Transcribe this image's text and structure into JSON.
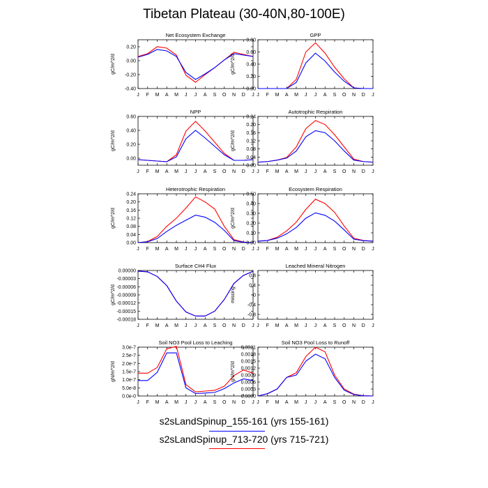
{
  "title": "Tibetan Plateau (30-40N,80-100E)",
  "months": [
    "J",
    "F",
    "M",
    "A",
    "M",
    "J",
    "J",
    "A",
    "S",
    "O",
    "N",
    "D",
    "J"
  ],
  "legend": [
    {
      "label": "s2sLandSpinup_155-161 (yrs 155-161)",
      "color": "#0000ff"
    },
    {
      "label": "s2sLandSpinup_713-720 (yrs 715-721)",
      "color": "#ff0000"
    }
  ],
  "chart_data": [
    {
      "type": "line",
      "title": "Net Ecosystem Exchange",
      "ylabel": "gC/m^2/d",
      "ylim": [
        -0.4,
        0.3
      ],
      "yticks": [
        "0.20",
        "0.00",
        "-0.20",
        "-0.40"
      ],
      "ytick_values": [
        0.2,
        0.0,
        -0.2,
        -0.4
      ],
      "series": [
        {
          "color": "#ff0000",
          "values": [
            0.06,
            0.1,
            0.2,
            0.18,
            0.08,
            -0.21,
            -0.31,
            -0.2,
            -0.1,
            0.01,
            0.12,
            0.09,
            0.06
          ]
        },
        {
          "color": "#0000ff",
          "values": [
            0.05,
            0.09,
            0.16,
            0.14,
            0.06,
            -0.17,
            -0.27,
            -0.19,
            -0.1,
            0.01,
            0.1,
            0.08,
            0.06
          ]
        }
      ]
    },
    {
      "type": "line",
      "title": "GPP",
      "ylabel": "gC/m^2/d",
      "ylim": [
        0,
        0.8
      ],
      "yticks": [
        "0.80",
        "0.60",
        "0.40",
        "0.20",
        "0.00"
      ],
      "ytick_values": [
        0.8,
        0.6,
        0.4,
        0.2,
        0.0
      ],
      "series": [
        {
          "color": "#ff0000",
          "values": [
            0.0,
            0.0,
            0.0,
            0.0,
            0.15,
            0.6,
            0.75,
            0.58,
            0.35,
            0.16,
            0.01,
            0.0,
            0.0
          ]
        },
        {
          "color": "#0000ff",
          "values": [
            0.0,
            0.0,
            0.0,
            0.0,
            0.1,
            0.42,
            0.58,
            0.45,
            0.27,
            0.12,
            0.01,
            0.0,
            0.0
          ]
        }
      ]
    },
    {
      "type": "line",
      "title": "NPP",
      "ylabel": "gC/m^2/d",
      "ylim": [
        -0.1,
        0.6
      ],
      "yticks": [
        "0.60",
        "0.40",
        "0.20",
        "0.00"
      ],
      "ytick_values": [
        0.6,
        0.4,
        0.2,
        0.0
      ],
      "series": [
        {
          "color": "#ff0000",
          "values": [
            -0.02,
            -0.03,
            -0.04,
            -0.05,
            0.05,
            0.39,
            0.53,
            0.39,
            0.23,
            0.07,
            -0.03,
            -0.03,
            -0.02
          ]
        },
        {
          "color": "#0000ff",
          "values": [
            -0.02,
            -0.03,
            -0.04,
            -0.05,
            0.02,
            0.28,
            0.4,
            0.29,
            0.17,
            0.05,
            -0.03,
            -0.03,
            -0.02
          ]
        }
      ]
    },
    {
      "type": "line",
      "title": "Autotrophic Respiration",
      "ylabel": "gC/m^2/d",
      "ylim": [
        0,
        0.24
      ],
      "yticks": [
        "0.24",
        "0.20",
        "0.16",
        "0.12",
        "0.08",
        "0.04",
        "0.00"
      ],
      "ytick_values": [
        0.24,
        0.2,
        0.16,
        0.12,
        0.08,
        0.04,
        0.0
      ],
      "series": [
        {
          "color": "#ff0000",
          "values": [
            0.015,
            0.018,
            0.025,
            0.038,
            0.09,
            0.18,
            0.22,
            0.2,
            0.15,
            0.09,
            0.03,
            0.018,
            0.015
          ]
        },
        {
          "color": "#0000ff",
          "values": [
            0.015,
            0.018,
            0.025,
            0.035,
            0.07,
            0.14,
            0.17,
            0.16,
            0.12,
            0.07,
            0.025,
            0.018,
            0.015
          ]
        }
      ]
    },
    {
      "type": "line",
      "title": "Heterotrophic Respiration",
      "ylabel": "gC/m^2/d",
      "ylim": [
        0,
        0.24
      ],
      "yticks": [
        "0.24",
        "0.20",
        "0.16",
        "0.12",
        "0.08",
        "0.04",
        "0.00"
      ],
      "ytick_values": [
        0.24,
        0.2,
        0.16,
        0.12,
        0.08,
        0.04,
        0.0
      ],
      "series": [
        {
          "color": "#ff0000",
          "values": [
            0.0,
            0.005,
            0.03,
            0.08,
            0.12,
            0.17,
            0.225,
            0.2,
            0.165,
            0.08,
            0.015,
            0.003,
            0.0
          ]
        },
        {
          "color": "#0000ff",
          "values": [
            0.0,
            0.004,
            0.02,
            0.055,
            0.085,
            0.11,
            0.135,
            0.125,
            0.1,
            0.06,
            0.01,
            0.002,
            0.0
          ]
        }
      ]
    },
    {
      "type": "line",
      "title": "Ecosystem Respiration",
      "ylabel": "gC/m^2/d",
      "ylim": [
        0,
        0.5
      ],
      "yticks": [
        "0.50",
        "0.40",
        "0.30",
        "0.20",
        "0.10",
        "0.00"
      ],
      "ytick_values": [
        0.5,
        0.4,
        0.3,
        0.2,
        0.1,
        0.0
      ],
      "series": [
        {
          "color": "#ff0000",
          "values": [
            0.015,
            0.022,
            0.055,
            0.12,
            0.21,
            0.34,
            0.445,
            0.4,
            0.31,
            0.17,
            0.045,
            0.022,
            0.015
          ]
        },
        {
          "color": "#0000ff",
          "values": [
            0.015,
            0.022,
            0.045,
            0.09,
            0.155,
            0.25,
            0.305,
            0.28,
            0.22,
            0.13,
            0.035,
            0.02,
            0.015
          ]
        }
      ]
    },
    {
      "type": "line",
      "title": "Surface CH4 Flux",
      "ylabel": "gC/m^2/d",
      "ylim": [
        -0.00018,
        0.0
      ],
      "yticks": [
        "0.00000",
        "-0.00003",
        "-0.00006",
        "-0.00009",
        "-0.00012",
        "-0.00015",
        "-0.00018"
      ],
      "ytick_values": [
        0.0,
        -3e-05,
        -6e-05,
        -9e-05,
        -0.00012,
        -0.00015,
        -0.00018
      ],
      "series": [
        {
          "color": "#ff0000",
          "values": [
            -2.5e-06,
            -5e-06,
            -2.2e-05,
            -5.6e-05,
            -0.000113,
            -0.000153,
            -0.000168,
            -0.000168,
            -0.00015,
            -0.000107,
            -4.8e-05,
            -1.8e-05,
            -3e-06
          ]
        },
        {
          "color": "#0000ff",
          "values": [
            -2.5e-06,
            -5e-06,
            -2.2e-05,
            -5.6e-05,
            -0.000113,
            -0.000153,
            -0.000168,
            -0.000168,
            -0.00015,
            -0.000107,
            -4.8e-05,
            -1.8e-05,
            -3e-06
          ]
        }
      ]
    },
    {
      "type": "line",
      "title": "Leached Mineral Nitrogen",
      "ylabel": "missing",
      "ylim": [
        -1.0,
        1.0
      ],
      "yticks": [
        "0.8",
        "0.4",
        "0",
        "-0.4",
        "-0.8"
      ],
      "ytick_values": [
        0.8,
        0.4,
        0,
        -0.4,
        -0.8
      ],
      "series": []
    },
    {
      "type": "line",
      "title": "Soil NO3 Pool Loss to Leaching",
      "ylabel": "gN/m^2/d",
      "ylim": [
        0,
        3e-07
      ],
      "yticks": [
        "3.0e-7",
        "2.5e-7",
        "2.0e-7",
        "1.5e-7",
        "1.0e-7",
        "5.0e-8",
        "0.0e-0"
      ],
      "ytick_values": [
        3e-07,
        2.5e-07,
        2e-07,
        1.5e-07,
        1e-07,
        5e-08,
        0
      ],
      "series": [
        {
          "color": "#ff0000",
          "values": [
            1.4e-07,
            1.4e-07,
            1.75e-07,
            2.9e-07,
            3.05e-07,
            7e-08,
            2.5e-08,
            3e-08,
            3.5e-08,
            6e-08,
            1.25e-07,
            1.6e-07,
            1.4e-07
          ]
        },
        {
          "color": "#0000ff",
          "values": [
            9.5e-08,
            9.5e-08,
            1.45e-07,
            2.65e-07,
            2.65e-07,
            5e-08,
            1.5e-08,
            1.8e-08,
            2.2e-08,
            4.5e-08,
            8e-08,
            1.05e-07,
            9.5e-08
          ]
        }
      ]
    },
    {
      "type": "line",
      "title": "Soil NO3 Pool Loss to Runoff",
      "ylabel": "gN/m^2/d",
      "ylim": [
        0,
        0.0021
      ],
      "yticks": [
        "0.0021",
        "0.0018",
        "0.0015",
        "0.0012",
        "0.0009",
        "0.0006",
        "0.0003",
        "0.0000"
      ],
      "ytick_values": [
        0.0021,
        0.0018,
        0.0015,
        0.0012,
        0.0009,
        0.0006,
        0.0003,
        0.0
      ],
      "series": [
        {
          "color": "#ff0000",
          "values": [
            0.0,
            0.0001,
            0.0003,
            0.0008,
            0.001,
            0.0017,
            0.0021,
            0.0019,
            0.0009,
            0.0003,
            8e-05,
            1e-05,
            0.0
          ]
        },
        {
          "color": "#0000ff",
          "values": [
            0.0,
            0.0001,
            0.0003,
            0.0008,
            0.0009,
            0.0015,
            0.0018,
            0.0016,
            0.0008,
            0.00025,
            6e-05,
            1e-05,
            0.0
          ]
        }
      ]
    }
  ]
}
